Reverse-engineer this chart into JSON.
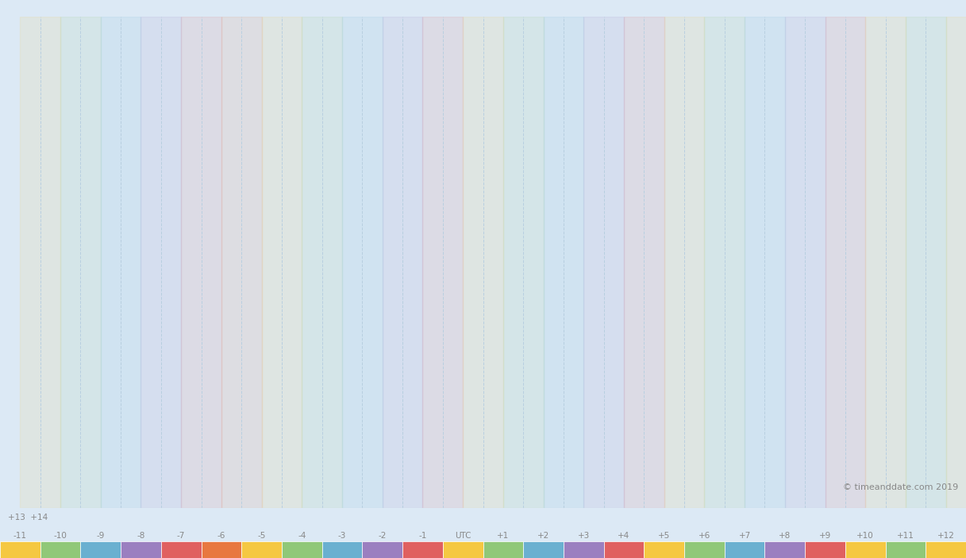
{
  "background_color": "#dce9f5",
  "map_bg": "#dce9f5",
  "border_color": "#333333",
  "title": "",
  "copyright": "© timeanddate.com 2019",
  "timezone_labels_top": [
    "+13",
    "+14"
  ],
  "timezone_labels_bottom_row1": [
    "-11",
    "-10"
  ],
  "timezone_labels_bottom": [
    "-11",
    "-10",
    "-9",
    "-8",
    "-7",
    "-6",
    "-5",
    "-4",
    "-3",
    "-2",
    "-1",
    "UTC",
    "+1",
    "+2",
    "+3",
    "+4",
    "+5",
    "+6",
    "+7",
    "+8",
    "+9",
    "+10",
    "+11",
    "+12"
  ],
  "timezone_offsets": [
    -11,
    -10,
    -9,
    -8,
    -7,
    -6,
    -5,
    -4,
    -3,
    -2,
    -1,
    0,
    1,
    2,
    3,
    4,
    5,
    6,
    7,
    8,
    9,
    10,
    11,
    12
  ],
  "legend_colors": [
    "#f5c842",
    "#90c878",
    "#6ab0d0",
    "#9b7fc0",
    "#e06060",
    "#e06060",
    "#f5c842",
    "#90c878",
    "#6ab0d0",
    "#9b7fc0",
    "#e06060",
    "#f5c842",
    "#90c878",
    "#6ab0d0",
    "#9b7fc0",
    "#e06060",
    "#f5c842",
    "#90c878",
    "#6ab0d0",
    "#9b7fc0",
    "#e06060",
    "#f5c842",
    "#90c878",
    "#f5c842"
  ],
  "legend_strip_colors": [
    "#f5c842",
    "#90c878",
    "#6ab0d0",
    "#9b7fc0",
    "#e06060",
    "#f5c842",
    "#f5c842",
    "#90c878",
    "#6ab0d0",
    "#9b7fc0",
    "#e06060",
    "#f5c842",
    "#90c878",
    "#6ab0d0",
    "#9b7fc0",
    "#e06060",
    "#f5c842",
    "#90c878",
    "#6ab0d0",
    "#9b7fc0",
    "#e06060",
    "#f5c842",
    "#90c878",
    "#f5c842"
  ],
  "tz_strip_colors_ordered": [
    "#f5c97a",
    "#8dc87a",
    "#65abc8",
    "#9b80c0",
    "#e07070",
    "#e87840",
    "#f5c97a",
    "#8dc87a",
    "#65abc8",
    "#9b80c0",
    "#e07070",
    "#f5c97a",
    "#8dc87a",
    "#65abc8",
    "#9b80c0",
    "#e07070",
    "#f5c97a",
    "#8dc87a",
    "#65abc8",
    "#9b80c0",
    "#e07070",
    "#f5c97a",
    "#8dc87a",
    "#f5c97a"
  ],
  "vline_color": "#b8cfe0",
  "vline_style": "--",
  "label_color": "#888888",
  "fig_width": 12.17,
  "fig_height": 7.03,
  "dpi": 100
}
